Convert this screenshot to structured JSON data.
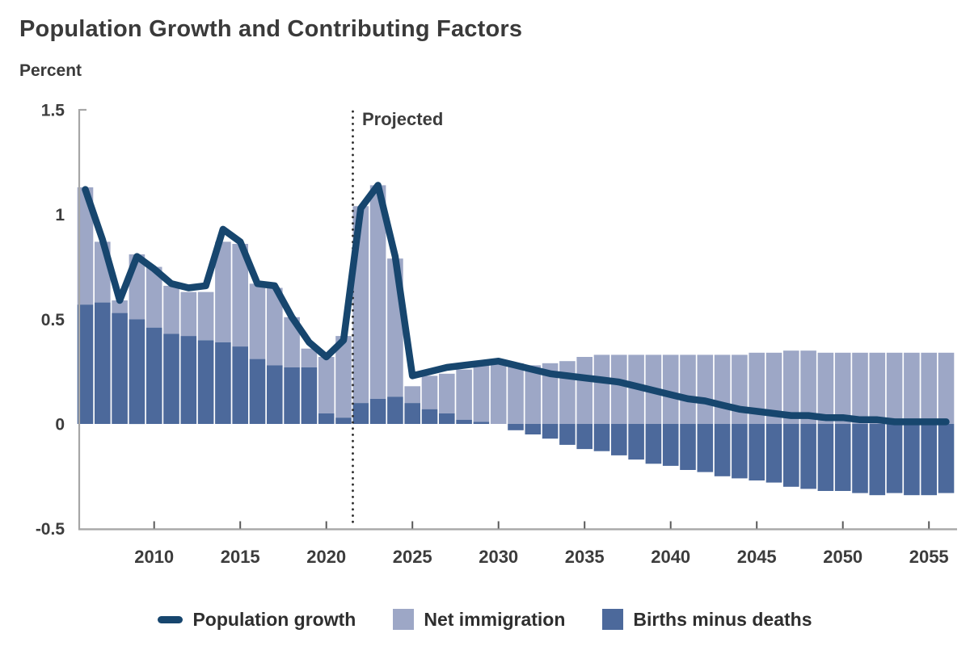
{
  "header": {
    "title": "Population Growth and Contributing Factors",
    "unit_label": "Percent"
  },
  "annotations": {
    "projected_label": "Projected",
    "projected_divider_year": 2021.55
  },
  "colors": {
    "line": "#17466e",
    "net_immigration": "#9da7c6",
    "births_minus_deaths": "#4c699b",
    "axis": "#a6a6a6",
    "tick": "#595959",
    "text": "#3c3c3c",
    "divider": "#2b2b2b"
  },
  "axes": {
    "y_ticks": [
      {
        "label": "1.5",
        "value": 1.5
      },
      {
        "label": "1",
        "value": 1.0
      },
      {
        "label": "0.5",
        "value": 0.5
      },
      {
        "label": "0",
        "value": 0.0
      },
      {
        "label": "-0.5",
        "value": -0.5
      }
    ],
    "x_ticks": [
      2010,
      2015,
      2020,
      2025,
      2030,
      2035,
      2040,
      2045,
      2050,
      2055
    ],
    "ylim": [
      -0.5,
      1.5
    ],
    "grid": "off",
    "legend_position": "bottom"
  },
  "legend": {
    "items": [
      {
        "label": "Population growth",
        "marker": "line-dash"
      },
      {
        "label": "Net immigration",
        "marker": "square-light"
      },
      {
        "label": "Births minus deaths",
        "marker": "square-dark"
      }
    ]
  },
  "chart_data": {
    "type": "bar",
    "subtype": "stacked-bars-with-line",
    "title": "Population Growth and Contributing Factors",
    "xlabel": "",
    "ylabel": "Percent",
    "ylim": [
      -0.5,
      1.5
    ],
    "projection_start": 2022,
    "years": [
      2006,
      2007,
      2008,
      2009,
      2010,
      2011,
      2012,
      2013,
      2014,
      2015,
      2016,
      2017,
      2018,
      2019,
      2020,
      2021,
      2022,
      2023,
      2024,
      2025,
      2026,
      2027,
      2028,
      2029,
      2030,
      2031,
      2032,
      2033,
      2034,
      2035,
      2036,
      2037,
      2038,
      2039,
      2040,
      2041,
      2042,
      2043,
      2044,
      2045,
      2046,
      2047,
      2048,
      2049,
      2050,
      2051,
      2052,
      2053,
      2054,
      2055,
      2056
    ],
    "series": [
      {
        "name": "Population growth",
        "type": "line",
        "values": [
          1.12,
          0.88,
          0.59,
          0.8,
          0.74,
          0.67,
          0.65,
          0.66,
          0.93,
          0.87,
          0.67,
          0.66,
          0.51,
          0.39,
          0.32,
          0.4,
          1.03,
          1.14,
          0.8,
          0.23,
          0.25,
          0.27,
          0.28,
          0.29,
          0.3,
          0.28,
          0.26,
          0.24,
          0.23,
          0.22,
          0.21,
          0.2,
          0.18,
          0.16,
          0.14,
          0.12,
          0.11,
          0.09,
          0.07,
          0.06,
          0.05,
          0.04,
          0.04,
          0.03,
          0.03,
          0.02,
          0.02,
          0.01,
          0.01,
          0.01,
          0.01
        ]
      },
      {
        "name": "Net immigration",
        "type": "bar",
        "values": [
          0.56,
          0.29,
          0.06,
          0.31,
          0.29,
          0.23,
          0.21,
          0.23,
          0.48,
          0.49,
          0.36,
          0.37,
          0.24,
          0.09,
          0.27,
          0.39,
          0.94,
          1.02,
          0.66,
          0.08,
          0.16,
          0.19,
          0.24,
          0.27,
          0.3,
          0.29,
          0.28,
          0.29,
          0.3,
          0.32,
          0.33,
          0.33,
          0.33,
          0.33,
          0.33,
          0.33,
          0.33,
          0.33,
          0.33,
          0.34,
          0.34,
          0.35,
          0.35,
          0.34,
          0.34,
          0.34,
          0.34,
          0.34,
          0.34,
          0.34,
          0.34
        ]
      },
      {
        "name": "Births minus deaths",
        "type": "bar",
        "values": [
          0.57,
          0.58,
          0.53,
          0.5,
          0.46,
          0.43,
          0.42,
          0.4,
          0.39,
          0.37,
          0.31,
          0.28,
          0.27,
          0.27,
          0.05,
          0.03,
          0.1,
          0.12,
          0.13,
          0.1,
          0.07,
          0.05,
          0.02,
          0.01,
          0.0,
          -0.03,
          -0.05,
          -0.07,
          -0.1,
          -0.12,
          -0.13,
          -0.15,
          -0.17,
          -0.19,
          -0.2,
          -0.22,
          -0.23,
          -0.25,
          -0.26,
          -0.27,
          -0.28,
          -0.3,
          -0.31,
          -0.32,
          -0.32,
          -0.33,
          -0.34,
          -0.33,
          -0.34,
          -0.34,
          -0.33
        ]
      }
    ]
  }
}
